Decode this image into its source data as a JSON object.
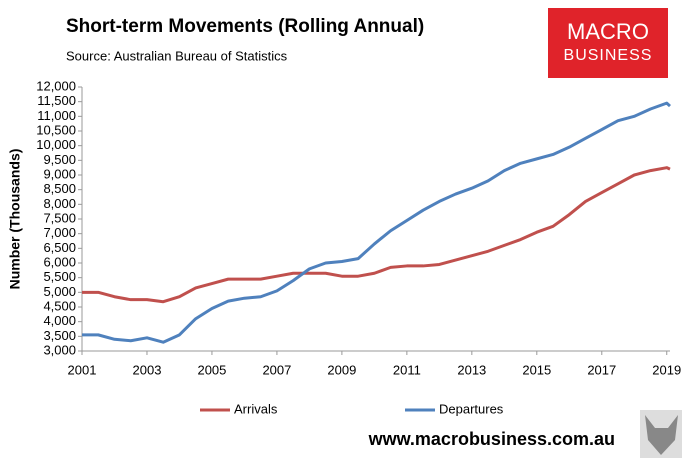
{
  "chart_data": {
    "type": "line",
    "title": "Short-term Movements (Rolling Annual)",
    "subtitle": "Source: Australian Bureau of Statistics",
    "y_label": "Number (Thousands)",
    "logo": [
      "MACRO",
      "BUSINESS"
    ],
    "footer": "www.macrobusiness.com.au",
    "x": [
      2001,
      2001.5,
      2002,
      2002.5,
      2003,
      2003.5,
      2004,
      2004.5,
      2005,
      2005.5,
      2006,
      2006.5,
      2007,
      2007.5,
      2008,
      2008.5,
      2009,
      2009.5,
      2010,
      2010.5,
      2011,
      2011.5,
      2012,
      2012.5,
      2013,
      2013.5,
      2014,
      2014.5,
      2015,
      2015.5,
      2016,
      2016.5,
      2017,
      2017.5,
      2018,
      2018.5,
      2019,
      2019.1
    ],
    "series": [
      {
        "name": "Arrivals",
        "color": "#c0504d",
        "values": [
          5000,
          5000,
          4850,
          4750,
          4750,
          4680,
          4850,
          5150,
          5300,
          5450,
          5450,
          5450,
          5550,
          5650,
          5650,
          5650,
          5550,
          5550,
          5650,
          5850,
          5900,
          5900,
          5950,
          6100,
          6250,
          6400,
          6600,
          6800,
          7050,
          7250,
          7650,
          8100,
          8400,
          8700,
          9000,
          9150,
          9250,
          9200
        ]
      },
      {
        "name": "Departures",
        "color": "#4f81bd",
        "values": [
          3550,
          3550,
          3400,
          3350,
          3450,
          3300,
          3550,
          4100,
          4450,
          4700,
          4800,
          4850,
          5050,
          5400,
          5800,
          6000,
          6050,
          6150,
          6650,
          7100,
          7450,
          7800,
          8100,
          8350,
          8550,
          8800,
          9150,
          9400,
          9550,
          9700,
          9950,
          10250,
          10550,
          10850,
          11000,
          11250,
          11450,
          11350
        ]
      }
    ],
    "xlim": [
      2001,
      2019.1
    ],
    "xticks": [
      2001,
      2003,
      2005,
      2007,
      2009,
      2011,
      2013,
      2015,
      2017,
      2019
    ],
    "ylim": [
      3000,
      12000
    ],
    "yticks": [
      {
        "value": 3000,
        "label": "3,000"
      },
      {
        "value": 3500,
        "label": "3,500"
      },
      {
        "value": 4000,
        "label": "4,000"
      },
      {
        "value": 4500,
        "label": "4,500"
      },
      {
        "value": 5000,
        "label": "5,000"
      },
      {
        "value": 5500,
        "label": "5,500"
      },
      {
        "value": 6000,
        "label": "6,000"
      },
      {
        "value": 6500,
        "label": "6,500"
      },
      {
        "value": 7000,
        "label": "7,000"
      },
      {
        "value": 7500,
        "label": "7,500"
      },
      {
        "value": 8000,
        "label": "8,000"
      },
      {
        "value": 8500,
        "label": "8,500"
      },
      {
        "value": 9000,
        "label": "9,000"
      },
      {
        "value": 9500,
        "label": "9,500"
      },
      {
        "value": 10000,
        "label": "10,000"
      },
      {
        "value": 10500,
        "label": "10,500"
      },
      {
        "value": 11000,
        "label": "11,000"
      },
      {
        "value": 11500,
        "label": "11,500"
      },
      {
        "value": 12000,
        "label": "12,000"
      }
    ],
    "grid": false
  }
}
